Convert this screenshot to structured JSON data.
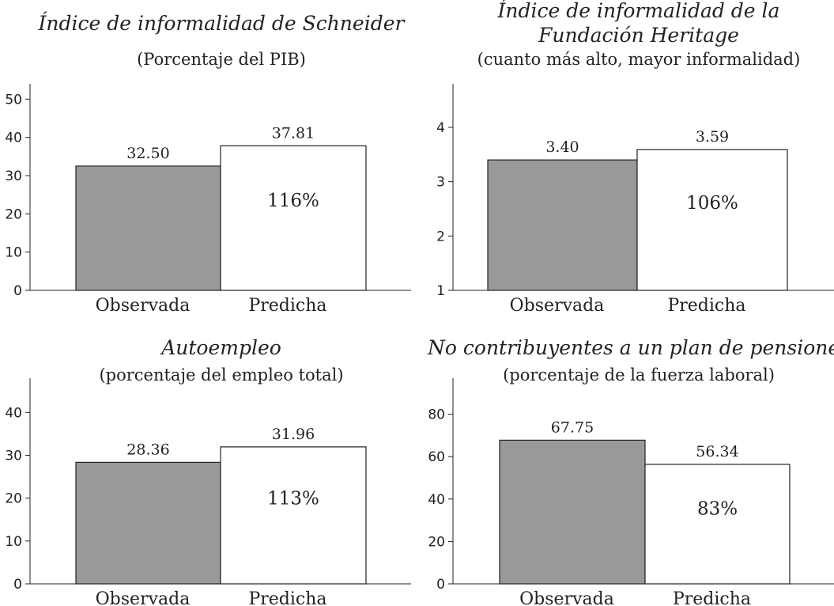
{
  "chart_data": [
    {
      "type": "bar",
      "title_lines": [
        "Índice de informalidad de Schneider"
      ],
      "subtitle": "(Porcentaje del PIB)",
      "categories": [
        "Observada",
        "Predicha"
      ],
      "values": [
        32.5,
        37.81
      ],
      "value_labels": [
        "32.50",
        "37.81"
      ],
      "ratio_label": "116%",
      "yticks": [
        "0",
        "10",
        "20",
        "30",
        "40",
        "50"
      ],
      "ylim": [
        0,
        54
      ],
      "colors": [
        "#999999",
        "#ffffff"
      ]
    },
    {
      "type": "bar",
      "title_lines": [
        "Índice de informalidad de la",
        "Fundación Heritage"
      ],
      "subtitle": "(cuanto más alto, mayor informalidad)",
      "categories": [
        "Observada",
        "Predicha"
      ],
      "values": [
        3.4,
        3.59
      ],
      "value_labels": [
        "3.40",
        "3.59"
      ],
      "ratio_label": "106%",
      "yticks": [
        "1",
        "2",
        "3",
        "4"
      ],
      "ylim": [
        1,
        4.8
      ],
      "colors": [
        "#999999",
        "#ffffff"
      ]
    },
    {
      "type": "bar",
      "title_lines": [
        "Autoempleo"
      ],
      "subtitle": "(porcentaje del empleo total)",
      "categories": [
        "Observada",
        "Predicha"
      ],
      "values": [
        28.36,
        31.96
      ],
      "value_labels": [
        "28.36",
        "31.96"
      ],
      "ratio_label": "113%",
      "yticks": [
        "0",
        "10",
        "20",
        "30",
        "40"
      ],
      "ylim": [
        0,
        48
      ],
      "colors": [
        "#999999",
        "#ffffff"
      ]
    },
    {
      "type": "bar",
      "title_lines": [
        "No contribuyentes a un plan de pensiones"
      ],
      "subtitle": "(porcentaje de la fuerza laboral)",
      "categories": [
        "Observada",
        "Predicha"
      ],
      "values": [
        67.75,
        56.34
      ],
      "value_labels": [
        "67.75",
        "56.34"
      ],
      "ratio_label": "83%",
      "yticks": [
        "0",
        "20",
        "40",
        "60",
        "80"
      ],
      "ylim": [
        0,
        97
      ],
      "colors": [
        "#999999",
        "#ffffff"
      ]
    }
  ]
}
